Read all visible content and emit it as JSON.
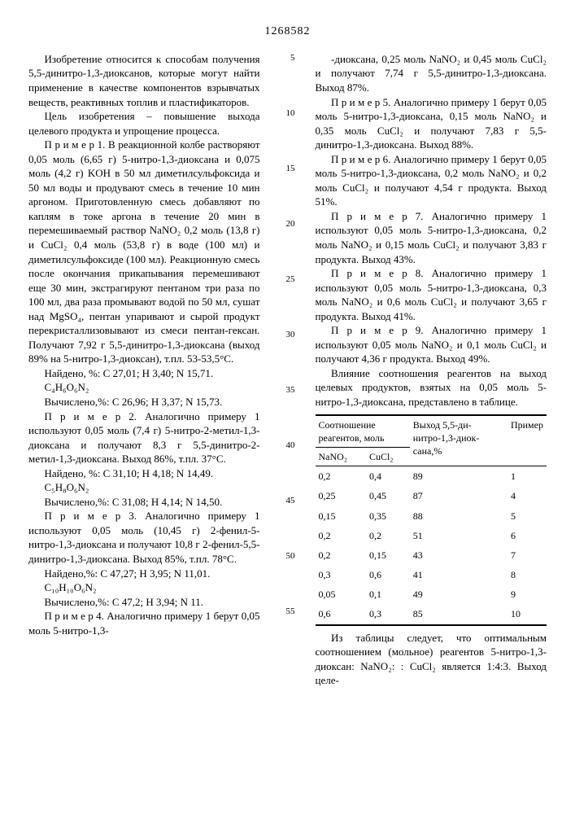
{
  "doc_number": "1268582",
  "left": {
    "p1": "Изобретение относится к способам получения 5,5-динитро-1,3-диоксанов, которые могут найти применение в качестве компонентов взрывчатых веществ, реактивных топлив и пластификаторов.",
    "p2": "Цель изобретения – повышение выхода целевого продукта и упрощение процесса.",
    "p3": "П р и м е р 1. В реакционной колбе растворяют 0,05 моль (6,65 г) 5-нитро-1,3-диоксана и 0,075 моль (4,2 г) KOH в 50 мл диметилсульфоксида и 50 мл воды и продувают смесь в течение 10 мин аргоном. Приготовленную смесь добавляют по каплям в токе аргона в течение 20 мин в перемешиваемый раствор NaNO₂ 0,2 моль (13,8 г) и CuCl₂ 0,4 моль (53,8 г) в воде (100 мл) и диметилсульфоксиде (100 мл). Реакционную смесь после окончания прикапывания перемешивают еще 30 мин, экстрагируют пентаном три раза по 100 мл, два раза промывают водой по 50 мл, сушат над MgSO₄, пентан упаривают и сырой продукт перекристаллизовывают из смеси пентан-гексан. Получают 7,92 г 5,5-динитро-1,3-диоксана (выход 89% на 5-нитро-1,3-диоксан), т.пл. 53-53,5°С.",
    "p4": "Найдено, %: С 27,01; Н 3,40; N 15,71.",
    "p5": "C₄H₆O₆N₂",
    "p6": "Вычислено,%: С 26,96; Н 3,37; N 15,73.",
    "p7": "П р и м е р 2. Аналогично примеру 1 используют 0,05 моль (7,4 г) 5-нитро-2-метил-1,3-диоксана и получают 8,3 г 5,5-динитро-2-метил-1,3-диоксана. Выход 86%, т.пл. 37°С.",
    "p8": "Найдено, %: С 31,10; Н 4,18; N 14,49.",
    "p9": "C₅H₈O₆N₂",
    "p10": "Вычислено,%: С 31,08; Н 4,14; N 14,50.",
    "p11": "П р и м е р 3. Аналогично примеру 1 используют 0,05 моль (10,45 г) 2-фенил-5-нитро-1,3-диоксана и получают 10,8 г 2-фенил-5,5-динитро-1,3-диоксана. Выход 85%, т.пл. 78°С.",
    "p12": "Найдено,%: С 47,27; Н 3,95; N 11,01.",
    "p13": "C₁₀H₁₀O₆N₂",
    "p14": "Вычислено,%: С 47,2; Н 3,94; N 11.",
    "p15": "П р и м е р 4. Аналогично примеру 1 берут 0,05 моль 5-нитро-1,3-"
  },
  "right": {
    "p1": "-диоксана, 0,25 моль NaNO₂ и 0,45 моль CuCl₂ и получают 7,74 г 5,5-динитро-1,3-диоксана. Выход 87%.",
    "p2": "П р и м е р 5. Аналогично примеру 1 берут 0,05 моль 5-нитро-1,3-диоксана, 0,15 моль NaNO₂ и 0,35 моль CuCl₂ и получают 7,83 г 5,5-динитро-1,3-диоксана. Выход 88%.",
    "p3": "П р и м е р 6. Аналогично примеру 1 берут 0,05 моль 5-нитро-1,3-диоксана, 0,2 моль NaNO₂ и 0,2 моль CuCl₂ и получают 4,54 г продукта. Выход 51%.",
    "p4": "П р и м е р 7. Аналогично примеру 1 используют 0,05 моль 5-нитро-1,3-диоксана, 0,2 моль NaNO₂ и 0,15 моль CuCl₂ и получают 3,83 г продукта. Выход 43%.",
    "p5": "П р и м е р 8. Аналогично примеру 1 используют 0,05 моль 5-нитро-1,3-диоксана, 0,3 моль NaNO₂ и 0,6 моль CuCl₂ и получают 3,65 г продукта. Выход 41%.",
    "p6": "П р и м е р 9. Аналогично примеру 1 используют 0,05 моль NaNO₂ и 0,1 моль CuCl₂ и получают 4,36 г продукта. Выход 49%.",
    "p7": "Влияние соотношения реагентов на выход целевых продуктов, взятых на 0,05 моль 5-нитро-1,3-диоксана, представлено в таблице.",
    "p8": "Из таблицы следует, что оптимальным соотношением (мольное) реагентов 5-нитро-1,3-диоксан: NaNO₂: : CuCl₂ является 1:4:3. Выход целе-"
  },
  "linenums": [
    "5",
    "10",
    "15",
    "20",
    "25",
    "30",
    "35",
    "40",
    "45",
    "50",
    "55"
  ],
  "table": {
    "h1": "Соотношение реагентов, моль",
    "h2": "Выход 5,5-ди-нитро-1,3-диок-сана,%",
    "h3": "Пример",
    "sub1": "NaNO₂",
    "sub2": "CuCl₂",
    "rows": [
      [
        "0,2",
        "0,4",
        "89",
        "1"
      ],
      [
        "0,25",
        "0,45",
        "87",
        "4"
      ],
      [
        "0,15",
        "0,35",
        "88",
        "5"
      ],
      [
        "0,2",
        "0,2",
        "51",
        "6"
      ],
      [
        "0,2",
        "0,15",
        "43",
        "7"
      ],
      [
        "0,3",
        "0,6",
        "41",
        "8"
      ],
      [
        "0,05",
        "0,1",
        "49",
        "9"
      ],
      [
        "0,6",
        "0,3",
        "85",
        "10"
      ]
    ]
  }
}
